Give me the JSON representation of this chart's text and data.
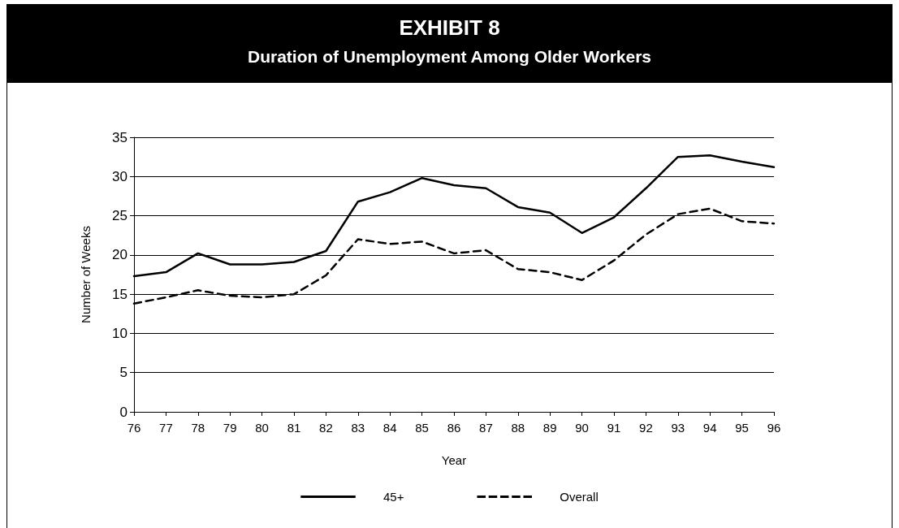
{
  "chart_data": {
    "type": "line",
    "title": "EXHIBIT 8",
    "subtitle": "Duration of Unemployment Among Older Workers",
    "xlabel": "Year",
    "ylabel": "Number of Weeks",
    "categories": [
      "76",
      "77",
      "78",
      "79",
      "80",
      "81",
      "82",
      "83",
      "84",
      "85",
      "86",
      "87",
      "88",
      "89",
      "90",
      "91",
      "92",
      "93",
      "94",
      "95",
      "96"
    ],
    "series": [
      {
        "name": "45+",
        "color": "#000000",
        "line_style": "solid",
        "values": [
          17.3,
          17.8,
          20.2,
          18.8,
          18.8,
          19.1,
          20.5,
          26.8,
          28.0,
          29.8,
          28.9,
          28.5,
          26.1,
          25.4,
          22.8,
          24.8,
          28.5,
          32.5,
          32.7,
          31.9,
          31.2
        ]
      },
      {
        "name": "Overall",
        "color": "#000000",
        "line_style": "dashed",
        "values": [
          13.8,
          14.6,
          15.5,
          14.8,
          14.6,
          15.0,
          17.4,
          22.0,
          21.4,
          21.7,
          20.2,
          20.6,
          18.2,
          17.8,
          16.8,
          19.3,
          22.6,
          25.2,
          25.9,
          24.3,
          24.0
        ]
      }
    ],
    "ylim": [
      0,
      35
    ],
    "yticks": [
      0,
      5,
      10,
      15,
      20,
      25,
      30,
      35
    ],
    "grid": "y",
    "legend": "bottom",
    "marker": "none"
  }
}
